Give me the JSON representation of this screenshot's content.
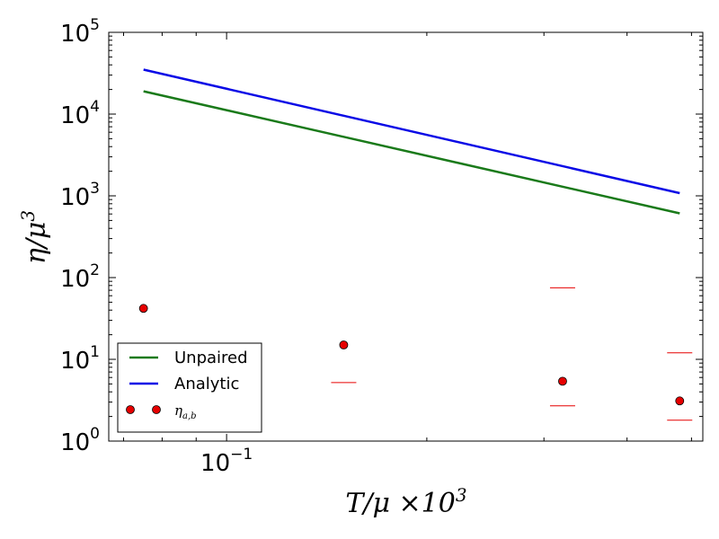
{
  "chart_data": {
    "type": "line",
    "xscale": "log",
    "yscale": "log",
    "xlim": [
      0.0665,
      0.52
    ],
    "ylim": [
      1,
      100000
    ],
    "xlabel": "T/μ ×10³",
    "ylabel": "η/μ³",
    "x_ticks": [
      {
        "value": 0.1,
        "base": "10",
        "exp": "−1"
      }
    ],
    "y_ticks": [
      {
        "value": 1,
        "base": "10",
        "exp": "0"
      },
      {
        "value": 10,
        "base": "10",
        "exp": "1"
      },
      {
        "value": 100,
        "base": "10",
        "exp": "2"
      },
      {
        "value": 1000,
        "base": "10",
        "exp": "3"
      },
      {
        "value": 10000,
        "base": "10",
        "exp": "4"
      },
      {
        "value": 100000,
        "base": "10",
        "exp": "5"
      }
    ],
    "series": [
      {
        "name": "Unpaired",
        "kind": "line",
        "color": "#1a7a1a",
        "x": [
          0.075,
          0.48
        ],
        "y": [
          19000,
          610
        ]
      },
      {
        "name": "Analytic",
        "kind": "line",
        "color": "#0a0ae6",
        "x": [
          0.075,
          0.48
        ],
        "y": [
          35000,
          1080
        ]
      },
      {
        "name": "η_{a,b}",
        "kind": "scatter",
        "color": "#e60000",
        "x": [
          0.075,
          0.15,
          0.32,
          0.48
        ],
        "y": [
          42,
          15,
          5.4,
          3.1
        ],
        "lower": [
          null,
          5.2,
          2.7,
          1.8
        ],
        "upper": [
          null,
          null,
          75,
          12
        ]
      }
    ],
    "legend": {
      "position": "bottom-left",
      "entries": [
        {
          "label": "Unpaired",
          "kind": "line",
          "color": "#1a7a1a"
        },
        {
          "label": "Analytic",
          "kind": "line",
          "color": "#0a0ae6"
        },
        {
          "label": "η",
          "sub": "a,b",
          "kind": "scatter",
          "color": "#e60000"
        }
      ]
    }
  }
}
